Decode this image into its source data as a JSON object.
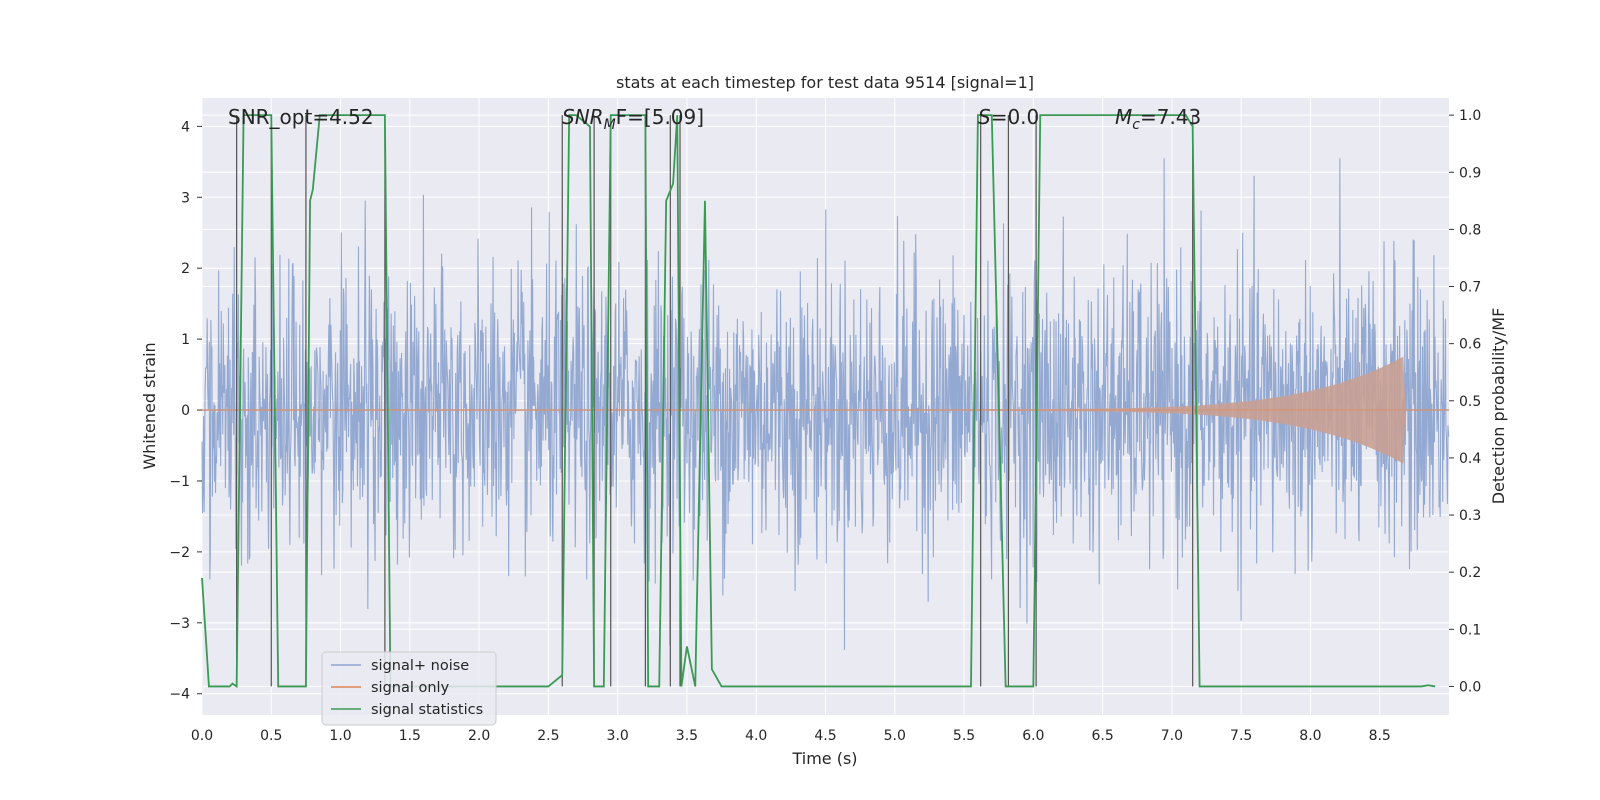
{
  "chart_data": {
    "type": "line",
    "title": "stats at each timestep for test data 9514 [signal=1]",
    "xlabel": "Time (s)",
    "ylabel": "Whitened strain",
    "ylabel_right": "Detection probability/MF",
    "xlim": [
      0.0,
      9.0
    ],
    "ylim": [
      -4.3,
      4.4
    ],
    "ylim_right": [
      -0.05,
      1.03
    ],
    "x_ticks": [
      "0.0",
      "0.5",
      "1.0",
      "1.5",
      "2.0",
      "2.5",
      "3.0",
      "3.5",
      "4.0",
      "4.5",
      "5.0",
      "5.5",
      "6.0",
      "6.5",
      "7.0",
      "7.5",
      "8.0",
      "8.5"
    ],
    "y_ticks": [
      "4",
      "3",
      "2",
      "1",
      "0",
      "−1",
      "−2",
      "−3",
      "−4"
    ],
    "y_right_ticks": [
      "1.0",
      "0.9",
      "0.8",
      "0.7",
      "0.6",
      "0.5",
      "0.4",
      "0.3",
      "0.2",
      "0.1",
      "0.0"
    ],
    "annotations": {
      "snr_opt": "SNR_opt=4.52",
      "snr_mf_main": "SNR",
      "snr_mf_sub": "M",
      "snr_mf_tail": "F=[5.09]",
      "s_main": "S",
      "s_tail": "=0.0",
      "mc_main": "M",
      "mc_sub": "c",
      "mc_tail": "=7.43"
    },
    "series": [
      {
        "name": "signal+ noise",
        "color": "#8fa5cf",
        "amplitude_std": 1.0,
        "burst_times": [
          0.25,
          2.4,
          4.5,
          5.5,
          7.1,
          8.3
        ]
      },
      {
        "name": "signal only",
        "color": "#dd8452",
        "fill_color": "#c8a093",
        "chirp_start_x": 4.5,
        "merger_x": 8.65,
        "peak_amplitude": 0.72
      },
      {
        "name": "signal statistics",
        "color": "#3a9a54",
        "x": [
          0.0,
          0.05,
          0.2,
          0.22,
          0.25,
          0.3,
          0.5,
          0.55,
          0.6,
          0.7,
          0.75,
          0.78,
          0.8,
          0.85,
          0.9,
          1.32,
          1.36,
          1.4,
          2.5,
          2.6,
          2.65,
          2.7,
          2.8,
          2.83,
          2.9,
          2.95,
          3.0,
          3.2,
          3.22,
          3.3,
          3.35,
          3.4,
          3.43,
          3.46,
          3.5,
          3.56,
          3.63,
          3.68,
          3.75,
          3.8,
          5.55,
          5.6,
          5.7,
          5.8,
          5.85,
          5.9,
          6.0,
          6.05,
          7.05,
          7.1,
          7.15,
          7.2,
          8.8,
          8.85,
          8.9
        ],
        "values": [
          0.19,
          0.0,
          0.0,
          0.005,
          0.0,
          1.0,
          1.0,
          0.0,
          0.0,
          0.0,
          0.0,
          0.85,
          0.87,
          1.0,
          1.0,
          1.0,
          0.0,
          0.0,
          0.0,
          0.02,
          1.0,
          1.0,
          0.98,
          0.0,
          0.0,
          1.0,
          1.0,
          1.0,
          0.0,
          0.0,
          0.85,
          0.88,
          1.0,
          0.0,
          0.07,
          0.0,
          0.85,
          0.03,
          0.0,
          0.0,
          0.0,
          1.0,
          1.0,
          0.0,
          0.0,
          0.0,
          0.0,
          1.0,
          1.0,
          1.0,
          0.98,
          0.0,
          0.0,
          0.002,
          0.0
        ]
      }
    ],
    "vertical_lines": [
      0.25,
      0.5,
      0.75,
      1.32,
      2.6,
      2.83,
      2.95,
      3.2,
      3.38,
      3.45,
      5.62,
      5.82,
      6.02,
      7.15
    ],
    "legend": {
      "position": "lower-left",
      "entries": [
        "signal+ noise",
        "signal only",
        "signal statistics"
      ]
    },
    "grid": true
  }
}
